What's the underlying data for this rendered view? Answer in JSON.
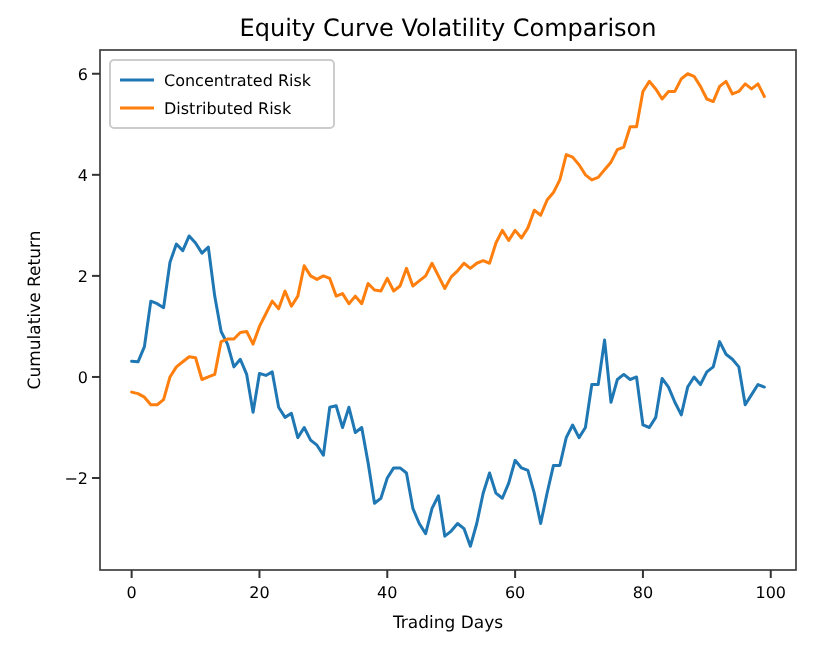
{
  "chart_data": {
    "type": "line",
    "title": "Equity Curve Volatility Comparison",
    "xlabel": "Trading Days",
    "ylabel": "Cumulative Return",
    "x": [
      0,
      1,
      2,
      3,
      4,
      5,
      6,
      7,
      8,
      9,
      10,
      11,
      12,
      13,
      14,
      15,
      16,
      17,
      18,
      19,
      20,
      21,
      22,
      23,
      24,
      25,
      26,
      27,
      28,
      29,
      30,
      31,
      32,
      33,
      34,
      35,
      36,
      37,
      38,
      39,
      40,
      41,
      42,
      43,
      44,
      45,
      46,
      47,
      48,
      49,
      50,
      51,
      52,
      53,
      54,
      55,
      56,
      57,
      58,
      59,
      60,
      61,
      62,
      63,
      64,
      65,
      66,
      67,
      68,
      69,
      70,
      71,
      72,
      73,
      74,
      75,
      76,
      77,
      78,
      79,
      80,
      81,
      82,
      83,
      84,
      85,
      86,
      87,
      88,
      89,
      90,
      91,
      92,
      93,
      94,
      95,
      96,
      97,
      98,
      99
    ],
    "series": [
      {
        "name": "Concentrated Risk",
        "color": "#1f77b4",
        "values": [
          0.31,
          0.3,
          0.6,
          1.5,
          1.45,
          1.37,
          2.27,
          2.63,
          2.5,
          2.79,
          2.65,
          2.45,
          2.57,
          1.6,
          0.9,
          0.65,
          0.2,
          0.35,
          0.05,
          -0.7,
          0.07,
          0.03,
          0.1,
          -0.6,
          -0.8,
          -0.72,
          -1.2,
          -1.0,
          -1.25,
          -1.35,
          -1.55,
          -0.6,
          -0.57,
          -1.0,
          -0.6,
          -1.1,
          -1.0,
          -1.7,
          -2.5,
          -2.4,
          -2.0,
          -1.8,
          -1.8,
          -1.9,
          -2.6,
          -2.9,
          -3.1,
          -2.6,
          -2.35,
          -3.15,
          -3.05,
          -2.9,
          -3.0,
          -3.35,
          -2.9,
          -2.3,
          -1.9,
          -2.3,
          -2.4,
          -2.1,
          -1.65,
          -1.8,
          -1.85,
          -2.3,
          -2.9,
          -2.3,
          -1.75,
          -1.75,
          -1.2,
          -0.95,
          -1.2,
          -1.0,
          -0.15,
          -0.15,
          0.73,
          -0.5,
          -0.05,
          0.05,
          -0.05,
          0.0,
          -0.95,
          -1.0,
          -0.8,
          -0.03,
          -0.2,
          -0.5,
          -0.75,
          -0.2,
          0.0,
          -0.15,
          0.1,
          0.2,
          0.7,
          0.45,
          0.35,
          0.2,
          -0.55,
          -0.35,
          -0.15,
          -0.2
        ]
      },
      {
        "name": "Distributed Risk",
        "color": "#ff7f0e",
        "values": [
          -0.3,
          -0.33,
          -0.4,
          -0.55,
          -0.55,
          -0.45,
          0.0,
          0.2,
          0.3,
          0.4,
          0.38,
          -0.05,
          0.0,
          0.05,
          0.7,
          0.75,
          0.75,
          0.88,
          0.9,
          0.65,
          1.0,
          1.25,
          1.5,
          1.35,
          1.7,
          1.4,
          1.6,
          2.2,
          2.0,
          1.93,
          2.0,
          1.95,
          1.6,
          1.65,
          1.45,
          1.6,
          1.45,
          1.85,
          1.72,
          1.7,
          1.95,
          1.7,
          1.8,
          2.15,
          1.8,
          1.9,
          2.0,
          2.25,
          2.0,
          1.75,
          1.98,
          2.1,
          2.25,
          2.15,
          2.25,
          2.3,
          2.25,
          2.65,
          2.9,
          2.7,
          2.9,
          2.75,
          2.95,
          3.3,
          3.2,
          3.5,
          3.65,
          3.9,
          4.4,
          4.35,
          4.2,
          4.0,
          3.9,
          3.95,
          4.1,
          4.25,
          4.5,
          4.55,
          4.95,
          4.95,
          5.65,
          5.85,
          5.7,
          5.5,
          5.65,
          5.65,
          5.9,
          6.0,
          5.95,
          5.75,
          5.5,
          5.45,
          5.75,
          5.85,
          5.6,
          5.65,
          5.8,
          5.7,
          5.8,
          5.55
        ]
      }
    ],
    "xlim": [
      -4.95,
      103.95
    ],
    "ylim": [
      -3.82,
      6.47
    ],
    "xticks": [
      0,
      20,
      40,
      60,
      80,
      100
    ],
    "yticks": [
      -2,
      0,
      2,
      4,
      6
    ],
    "legend": "top left",
    "line_style": "solid",
    "marker": "none",
    "grid": false
  }
}
